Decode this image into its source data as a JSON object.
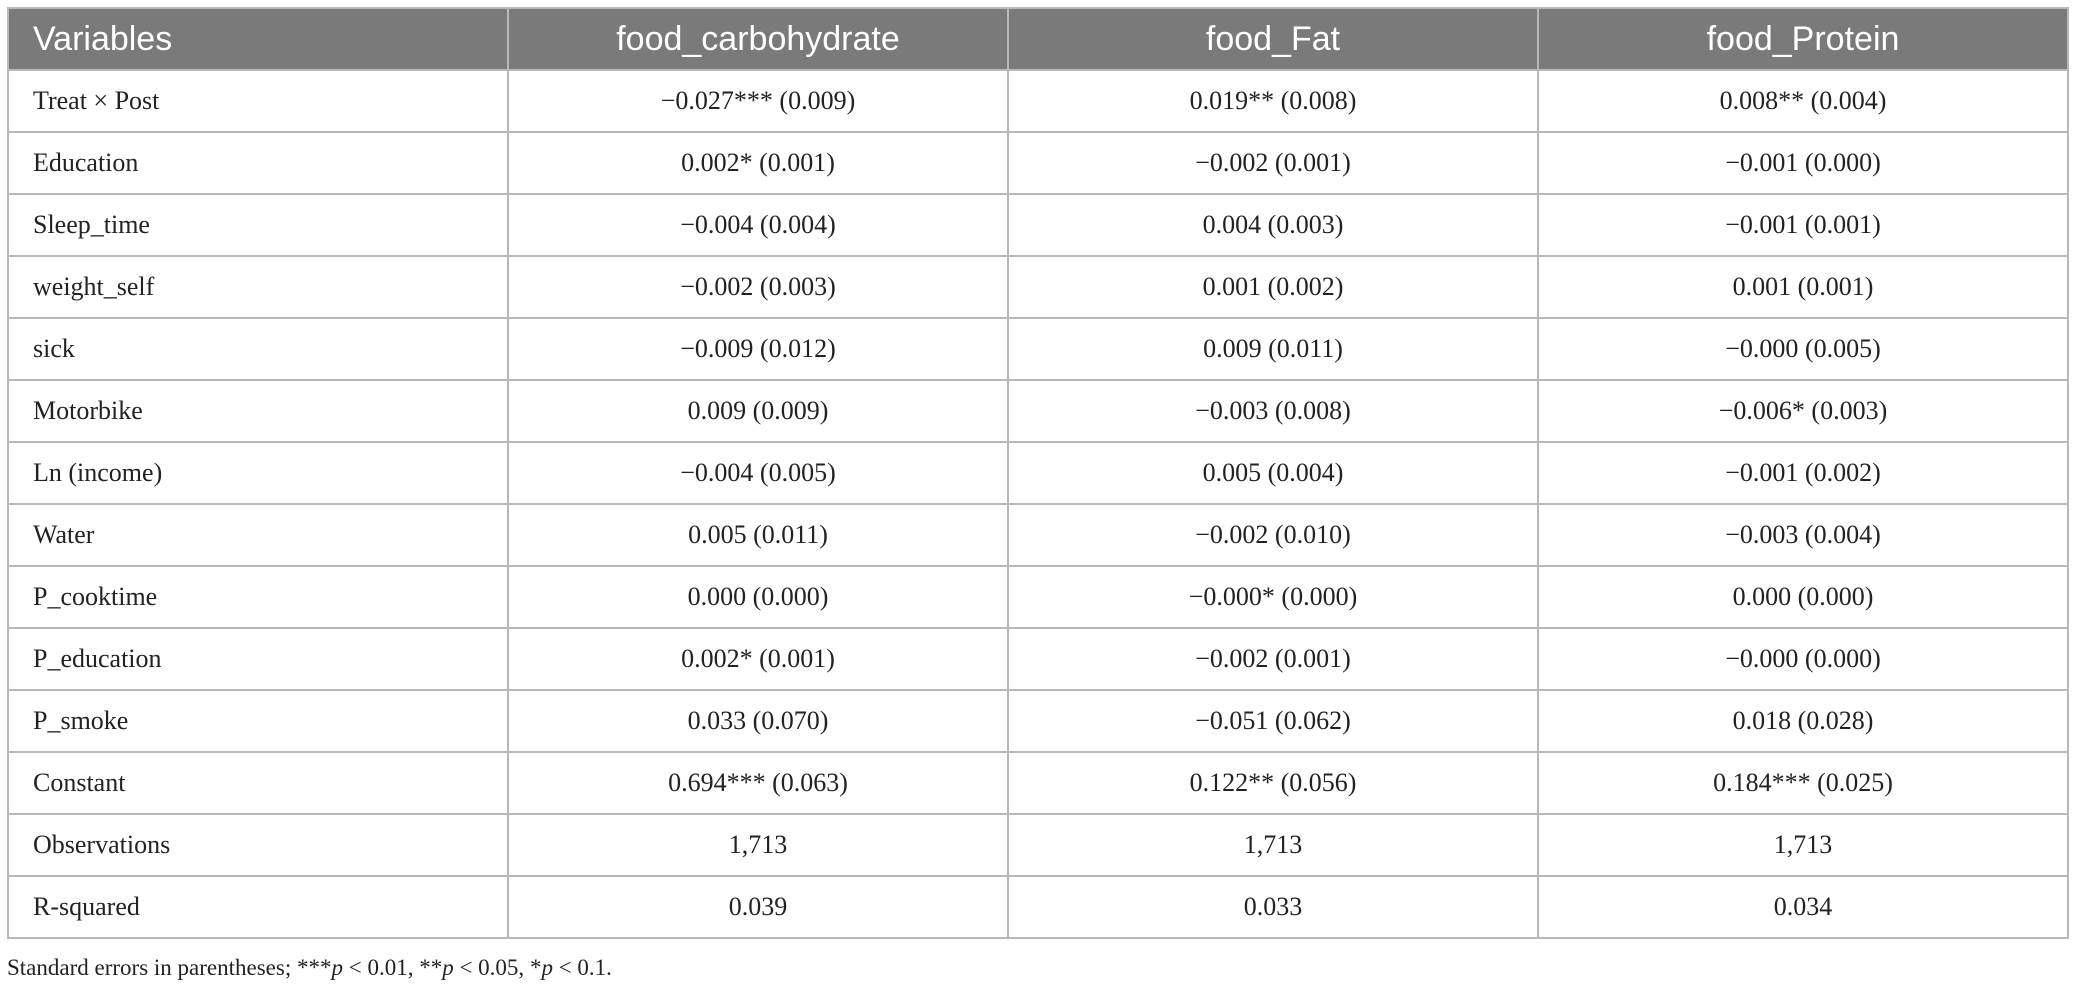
{
  "table": {
    "headers": [
      "Variables",
      "food_carbohydrate",
      "food_Fat",
      "food_Protein"
    ],
    "rows": [
      [
        "Treat × Post",
        "−0.027*** (0.009)",
        "0.019** (0.008)",
        "0.008** (0.004)"
      ],
      [
        "Education",
        "0.002* (0.001)",
        "−0.002 (0.001)",
        "−0.001 (0.000)"
      ],
      [
        "Sleep_time",
        "−0.004 (0.004)",
        "0.004 (0.003)",
        "−0.001 (0.001)"
      ],
      [
        "weight_self",
        "−0.002 (0.003)",
        "0.001 (0.002)",
        "0.001 (0.001)"
      ],
      [
        "sick",
        "−0.009 (0.012)",
        "0.009 (0.011)",
        "−0.000 (0.005)"
      ],
      [
        "Motorbike",
        "0.009 (0.009)",
        "−0.003 (0.008)",
        "−0.006* (0.003)"
      ],
      [
        "Ln (income)",
        "−0.004 (0.005)",
        "0.005 (0.004)",
        "−0.001 (0.002)"
      ],
      [
        "Water",
        "0.005 (0.011)",
        "−0.002 (0.010)",
        "−0.003 (0.004)"
      ],
      [
        "P_cooktime",
        "0.000 (0.000)",
        "−0.000* (0.000)",
        "0.000 (0.000)"
      ],
      [
        "P_education",
        "0.002* (0.001)",
        "−0.002 (0.001)",
        "−0.000 (0.000)"
      ],
      [
        "P_smoke",
        "0.033 (0.070)",
        "−0.051 (0.062)",
        "0.018 (0.028)"
      ],
      [
        "Constant",
        "0.694*** (0.063)",
        "0.122** (0.056)",
        "0.184*** (0.025)"
      ],
      [
        "Observations",
        "1,713",
        "1,713",
        "1,713"
      ],
      [
        "R-squared",
        "0.039",
        "0.033",
        "0.034"
      ]
    ]
  },
  "footnote": {
    "lead": "Standard errors in parentheses; ",
    "s1": "***",
    "p1": "p",
    "t1": " < 0.01, ",
    "s2": "**",
    "p2": "p",
    "t2": " < 0.05, ",
    "s3": "*",
    "p3": "p",
    "t3": " < 0.1."
  },
  "colors": {
    "header_bg": "#7a7a7a",
    "header_text": "#ffffff",
    "border": "#b8b8b8",
    "body_text": "#222222"
  }
}
